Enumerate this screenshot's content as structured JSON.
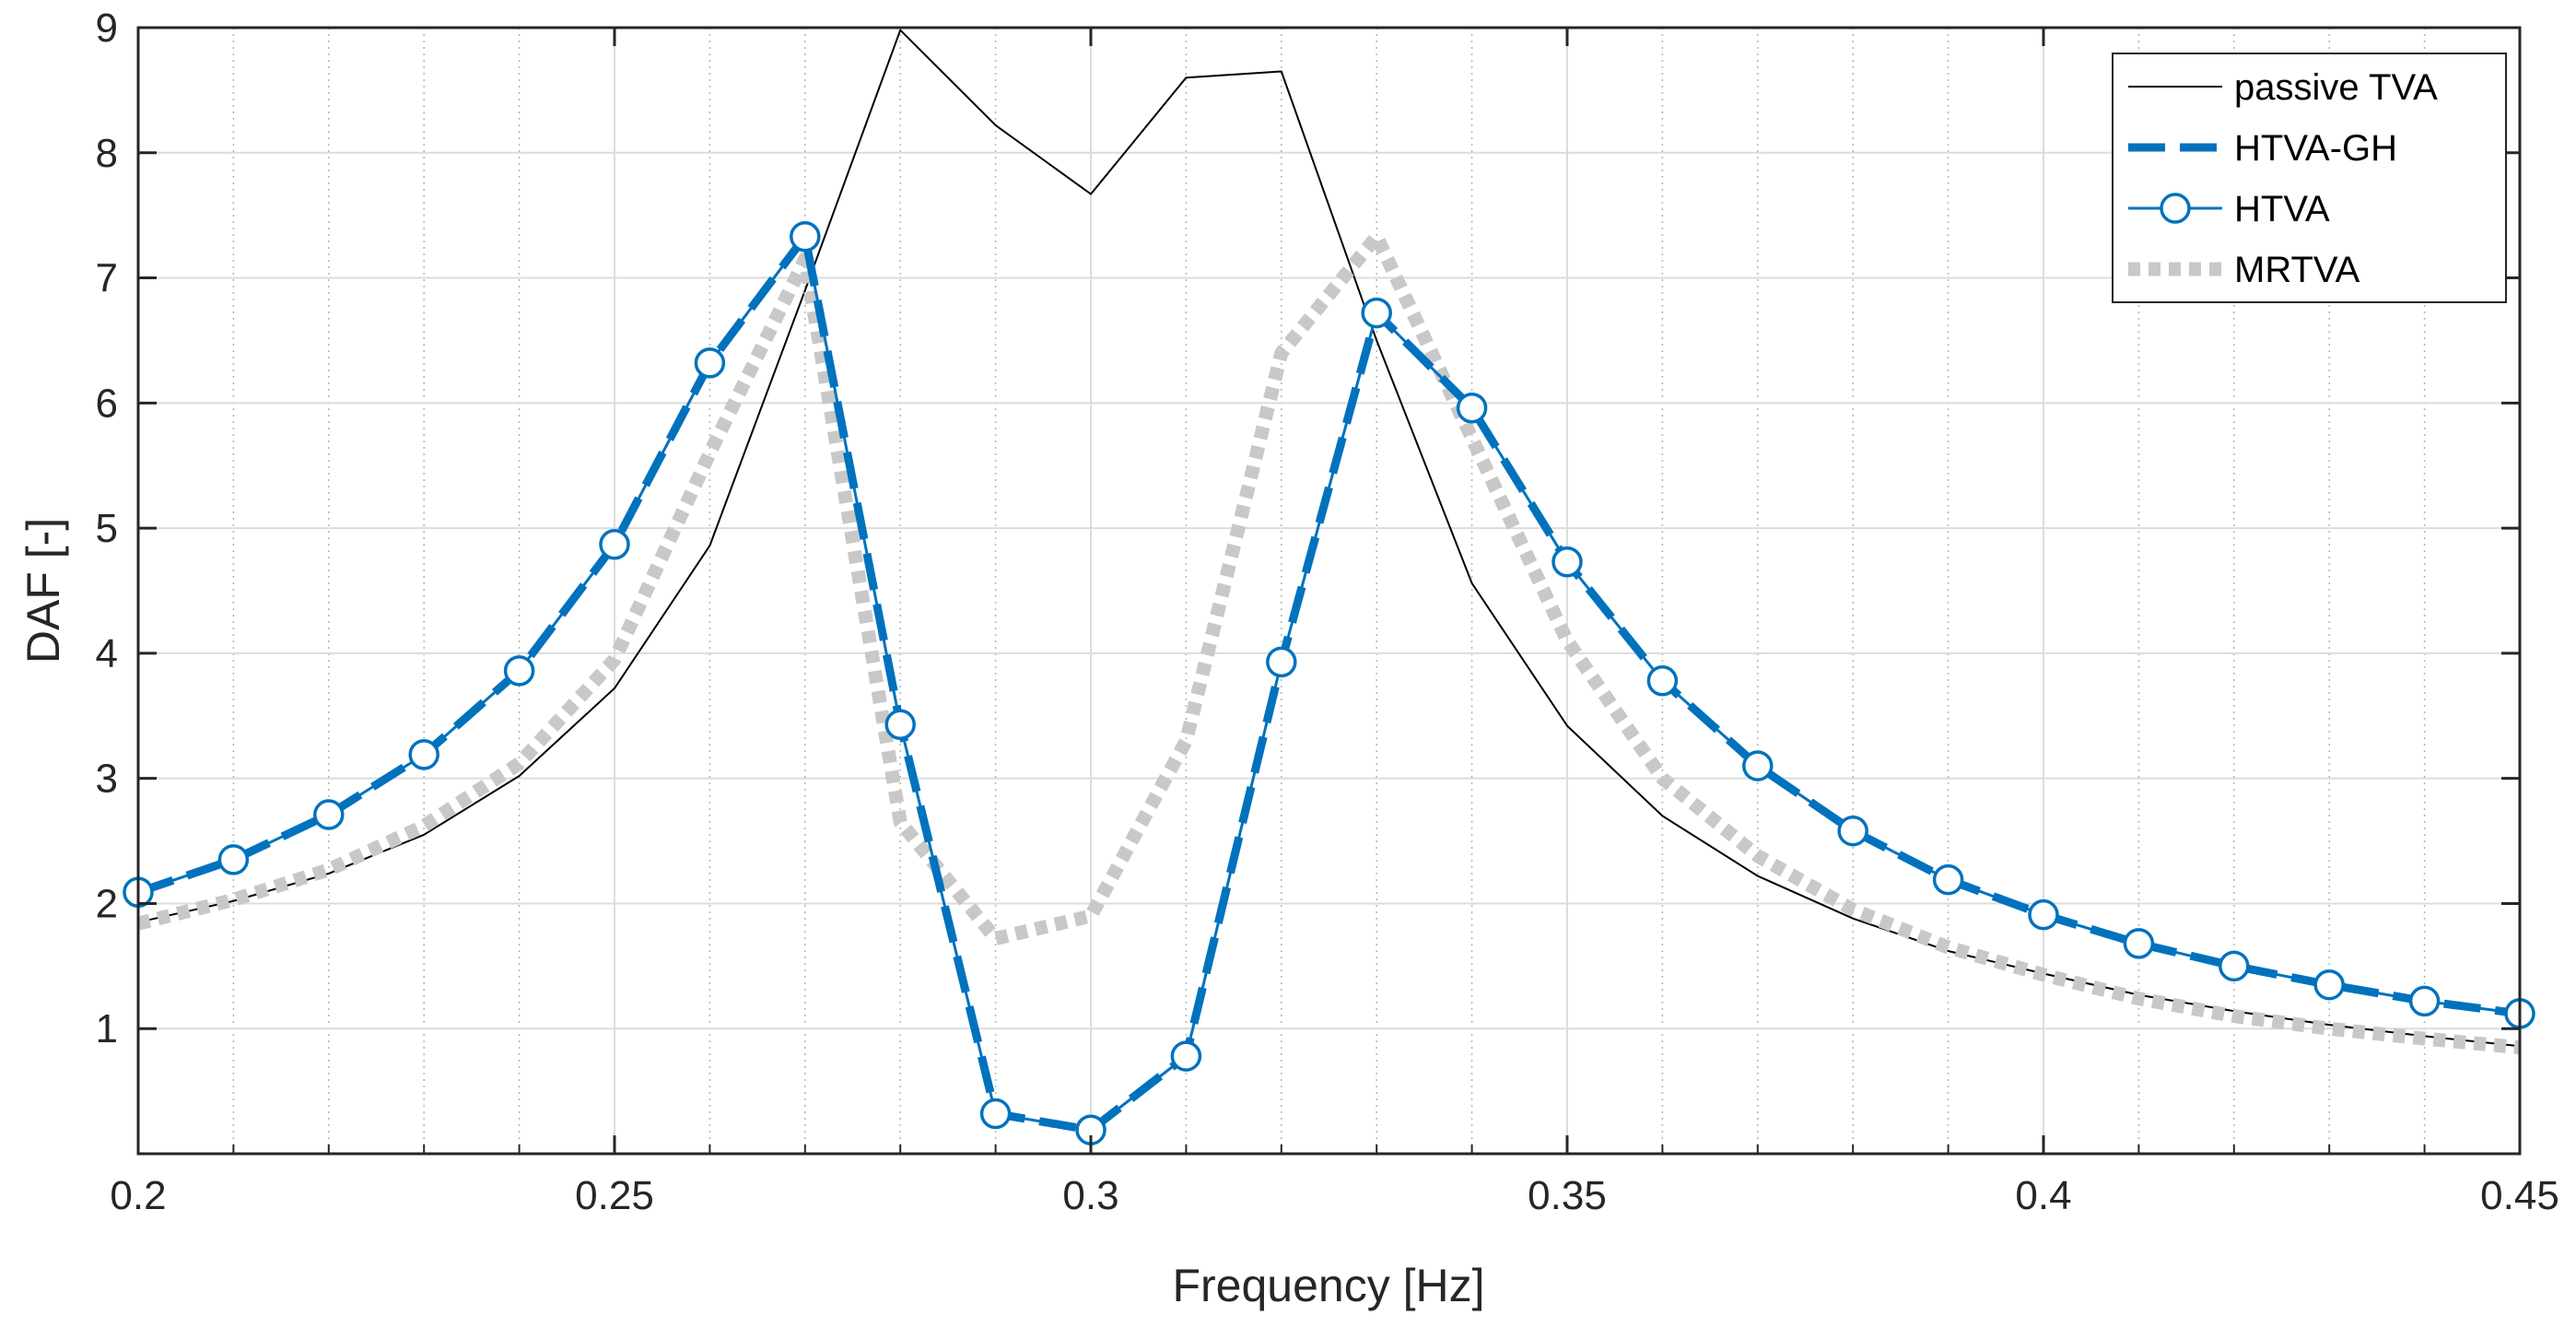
{
  "chart_data": {
    "type": "line",
    "title": "",
    "xlabel": "Frequency [Hz]",
    "ylabel": "DAF [-]",
    "xlim": [
      0.2,
      0.45
    ],
    "ylim": [
      0,
      9
    ],
    "xticks": [
      0.2,
      0.25,
      0.3,
      0.35,
      0.4,
      0.45
    ],
    "xtick_labels": [
      "0.2",
      "0.25",
      "0.3",
      "0.35",
      "0.4",
      "0.45"
    ],
    "yticks": [
      1,
      2,
      3,
      4,
      5,
      6,
      7,
      8,
      9
    ],
    "ytick_labels": [
      "1",
      "2",
      "3",
      "4",
      "5",
      "6",
      "7",
      "8",
      "9"
    ],
    "minor_grid_x_step": 0.01,
    "grid": true,
    "legend_position": "top-right",
    "x": [
      0.2,
      0.21,
      0.22,
      0.23,
      0.24,
      0.25,
      0.26,
      0.27,
      0.28,
      0.29,
      0.3,
      0.31,
      0.32,
      0.33,
      0.34,
      0.35,
      0.36,
      0.37,
      0.38,
      0.39,
      0.4,
      0.41,
      0.42,
      0.43,
      0.44,
      0.45
    ],
    "series": [
      {
        "name": "passive TVA",
        "style": "thin-solid",
        "color": "#000000",
        "values": [
          1.85,
          2.02,
          2.24,
          2.55,
          3.02,
          3.72,
          4.86,
          6.9,
          8.98,
          8.22,
          7.67,
          8.6,
          8.65,
          6.5,
          4.56,
          3.42,
          2.7,
          2.22,
          1.88,
          1.62,
          1.44,
          1.27,
          1.14,
          1.03,
          0.94,
          0.86
        ]
      },
      {
        "name": "HTVA-GH",
        "style": "thick-dashed",
        "color": "#0072BD",
        "values": [
          2.09,
          2.35,
          2.71,
          3.19,
          3.86,
          4.87,
          6.32,
          7.33,
          3.43,
          0.32,
          0.19,
          0.78,
          3.93,
          6.72,
          5.96,
          4.73,
          3.78,
          3.1,
          2.58,
          2.19,
          1.91,
          1.68,
          1.5,
          1.35,
          1.22,
          1.12
        ]
      },
      {
        "name": "HTVA",
        "style": "solid-circles",
        "color": "#0072BD",
        "values": [
          2.09,
          2.35,
          2.71,
          3.19,
          3.86,
          4.87,
          6.32,
          7.33,
          3.43,
          0.32,
          0.19,
          0.78,
          3.93,
          6.72,
          5.96,
          4.73,
          3.78,
          3.1,
          2.58,
          2.19,
          1.91,
          1.68,
          1.5,
          1.35,
          1.22,
          1.12
        ]
      },
      {
        "name": "MRTVA",
        "style": "thick-dotted",
        "color": "#C8C8C8",
        "values": [
          1.84,
          2.03,
          2.27,
          2.62,
          3.12,
          3.95,
          5.6,
          7.15,
          2.65,
          1.72,
          1.9,
          3.3,
          6.4,
          7.33,
          5.72,
          4.1,
          3.0,
          2.38,
          1.95,
          1.65,
          1.43,
          1.24,
          1.1,
          1.0,
          0.92,
          0.85
        ]
      }
    ]
  }
}
